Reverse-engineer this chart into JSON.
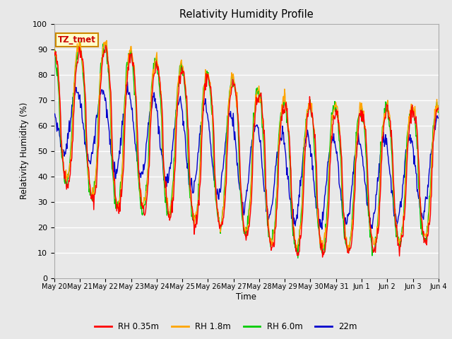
{
  "title": "Relativity Humidity Profile",
  "xlabel": "Time",
  "ylabel": "Relativity Humidity (%)",
  "ylim": [
    0,
    100
  ],
  "plot_bg_color": "#e8e8e8",
  "grid_color": "#ffffff",
  "line_colors": {
    "RH 0.35m": "#ff0000",
    "RH 1.8m": "#ffa500",
    "RH 6.0m": "#00cc00",
    "22m": "#0000cc"
  },
  "annotation_text": "TZ_tmet",
  "annotation_bg": "#ffffcc",
  "annotation_border": "#cc8800",
  "tick_labels": [
    "May 20",
    "May 21",
    "May 22",
    "May 23",
    "May 24",
    "May 25",
    "May 26",
    "May 27",
    "May 28",
    "May 29",
    "May 30",
    "May 31",
    "Jun 1",
    "Jun 2",
    "Jun 3",
    "Jun 4"
  ],
  "num_points": 720,
  "figsize": [
    6.4,
    4.8
  ],
  "dpi": 100
}
